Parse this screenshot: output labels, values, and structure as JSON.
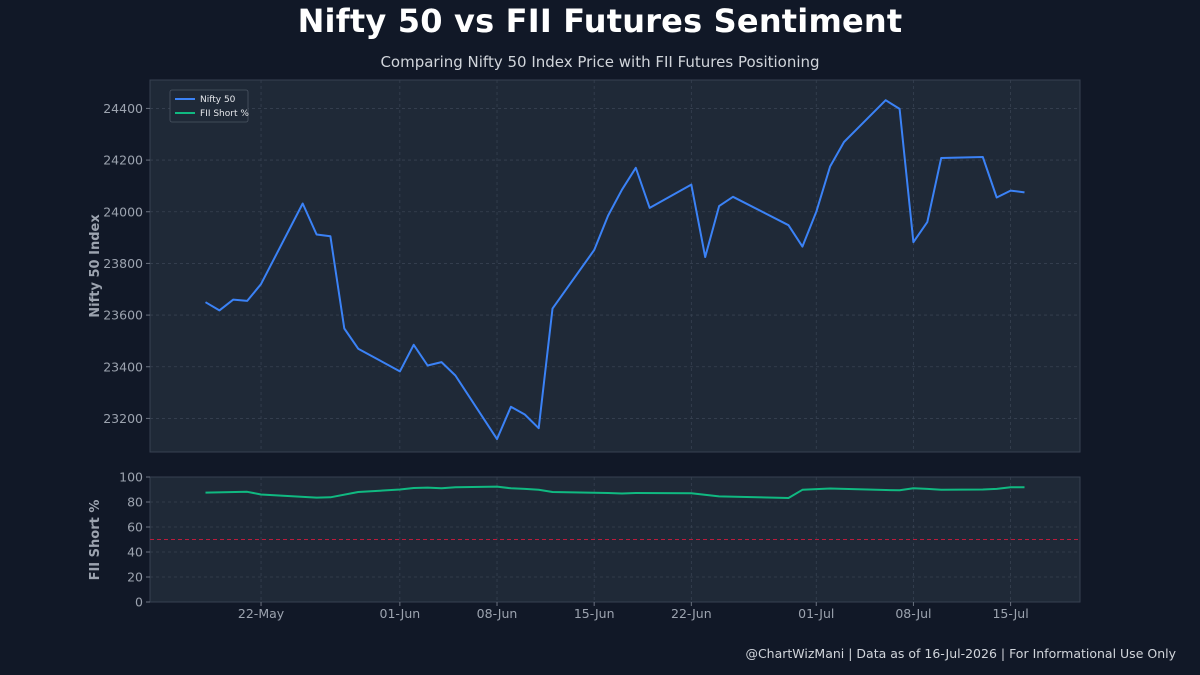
{
  "title": "Nifty 50 vs FII Futures Sentiment",
  "subtitle": "Comparing Nifty 50 Index Price with FII Futures Positioning",
  "footer": "@ChartWizMani | Data as of 16-Jul-2026 | For Informational Use Only",
  "colors": {
    "background": "#111827",
    "panel": "#1f2937",
    "grid": "#374151",
    "nifty": "#3b82f6",
    "fii": "#10b981",
    "reference": "#b91c3c"
  },
  "chart_data": [
    {
      "type": "line",
      "ylabel": "Nifty 50 Index",
      "ylim": [
        23070,
        24510
      ],
      "yticks": [
        23200,
        23400,
        23600,
        23800,
        24000,
        24200,
        24400
      ],
      "grid": true,
      "legend": {
        "position": "top-left",
        "entries": [
          "Nifty 50",
          "FII Short %"
        ]
      },
      "series": [
        {
          "name": "Nifty 50",
          "x": [
            "2026-05-18",
            "2026-05-19",
            "2026-05-20",
            "2026-05-21",
            "2026-05-22",
            "2026-05-25",
            "2026-05-26",
            "2026-05-27",
            "2026-05-28",
            "2026-05-29",
            "2026-06-01",
            "2026-06-02",
            "2026-06-03",
            "2026-06-04",
            "2026-06-05",
            "2026-06-08",
            "2026-06-09",
            "2026-06-10",
            "2026-06-11",
            "2026-06-12",
            "2026-06-15",
            "2026-06-16",
            "2026-06-17",
            "2026-06-18",
            "2026-06-19",
            "2026-06-22",
            "2026-06-23",
            "2026-06-24",
            "2026-06-25",
            "2026-06-29",
            "2026-06-30",
            "2026-07-01",
            "2026-07-02",
            "2026-07-03",
            "2026-07-06",
            "2026-07-07",
            "2026-07-08",
            "2026-07-09",
            "2026-07-10",
            "2026-07-13",
            "2026-07-14",
            "2026-07-15",
            "2026-07-16"
          ],
          "values": [
            23650,
            23618,
            23660,
            23655,
            23720,
            24032,
            23912,
            23905,
            23548,
            23470,
            23382,
            23485,
            23405,
            23418,
            23366,
            23120,
            23245,
            23215,
            23162,
            23625,
            23852,
            23985,
            24085,
            24170,
            24015,
            24105,
            23825,
            24022,
            24058,
            23948,
            23865,
            24000,
            24175,
            24270,
            24432,
            24398,
            23882,
            23960,
            24208,
            24212,
            24055,
            24082,
            24075
          ]
        }
      ]
    },
    {
      "type": "line",
      "ylabel": "FII Short %",
      "ylim": [
        0,
        100
      ],
      "yticks": [
        0,
        20,
        40,
        60,
        80,
        100
      ],
      "xticks": [
        "22-May",
        "01-Jun",
        "08-Jun",
        "15-Jun",
        "22-Jun",
        "01-Jul",
        "08-Jul",
        "15-Jul"
      ],
      "xtick_dates": [
        "2026-05-22",
        "2026-06-01",
        "2026-06-08",
        "2026-06-15",
        "2026-06-22",
        "2026-07-01",
        "2026-07-08",
        "2026-07-15"
      ],
      "reference_line": 50,
      "grid": true,
      "series": [
        {
          "name": "FII Short %",
          "x": [
            "2026-05-18",
            "2026-05-21",
            "2026-05-22",
            "2026-05-26",
            "2026-05-27",
            "2026-05-29",
            "2026-06-01",
            "2026-06-02",
            "2026-06-03",
            "2026-06-04",
            "2026-06-05",
            "2026-06-08",
            "2026-06-09",
            "2026-06-10",
            "2026-06-11",
            "2026-06-12",
            "2026-06-15",
            "2026-06-16",
            "2026-06-17",
            "2026-06-18",
            "2026-06-22",
            "2026-06-24",
            "2026-06-29",
            "2026-06-30",
            "2026-07-02",
            "2026-07-06",
            "2026-07-07",
            "2026-07-08",
            "2026-07-09",
            "2026-07-10",
            "2026-07-13",
            "2026-07-14",
            "2026-07-15",
            "2026-07-16"
          ],
          "values": [
            87.5,
            88.2,
            86.0,
            83.5,
            83.8,
            88.0,
            90.0,
            91.2,
            91.5,
            91.0,
            91.8,
            92.3,
            91.0,
            90.5,
            89.8,
            88.0,
            87.4,
            87.2,
            86.8,
            87.2,
            87.0,
            84.5,
            83.2,
            89.8,
            90.8,
            89.6,
            89.4,
            91.0,
            90.5,
            89.8,
            90.0,
            90.5,
            91.8,
            91.8
          ]
        }
      ]
    }
  ]
}
